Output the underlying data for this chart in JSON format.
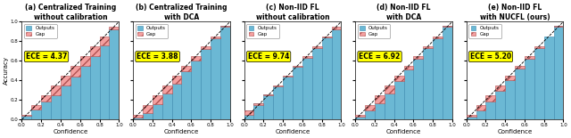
{
  "panels": [
    {
      "title": "(a) Centralized Training\nwithout calibration",
      "ece": "ECE = 4.37",
      "acc": [
        0.04,
        0.1,
        0.18,
        0.25,
        0.35,
        0.44,
        0.55,
        0.65,
        0.76,
        0.92
      ]
    },
    {
      "title": "(b) Centralized Training\nwith DCA",
      "ece": "ECE = 3.88",
      "acc": [
        0.02,
        0.07,
        0.16,
        0.27,
        0.37,
        0.49,
        0.6,
        0.72,
        0.83,
        0.96
      ]
    },
    {
      "title": "(c) Non-IID FL\nwithout calibration",
      "ece": "ECE = 9.74",
      "acc": [
        0.09,
        0.17,
        0.26,
        0.34,
        0.44,
        0.54,
        0.63,
        0.73,
        0.84,
        0.92
      ]
    },
    {
      "title": "(d) Non-IID FL\nwith DCA",
      "ece": "ECE = 6.92",
      "acc": [
        0.03,
        0.09,
        0.17,
        0.27,
        0.39,
        0.51,
        0.62,
        0.73,
        0.83,
        0.96
      ]
    },
    {
      "title": "(e) Non-IID FL\nwith NUCFL (ours)",
      "ece": "ECE = 5.20",
      "acc": [
        0.03,
        0.09,
        0.18,
        0.29,
        0.4,
        0.52,
        0.62,
        0.73,
        0.85,
        0.96
      ]
    }
  ],
  "conf_centers": [
    0.05,
    0.15,
    0.25,
    0.35,
    0.45,
    0.55,
    0.65,
    0.75,
    0.85,
    0.95
  ],
  "bar_color": "#6BB8D4",
  "gap_color": "#F4A0A0",
  "bar_edge_color": "#3a8aaf",
  "gap_edge_color": "#b05050",
  "ylabel": "Accuracy",
  "xlabel": "Confidence",
  "figsize": [
    6.4,
    1.55
  ],
  "dpi": 100
}
